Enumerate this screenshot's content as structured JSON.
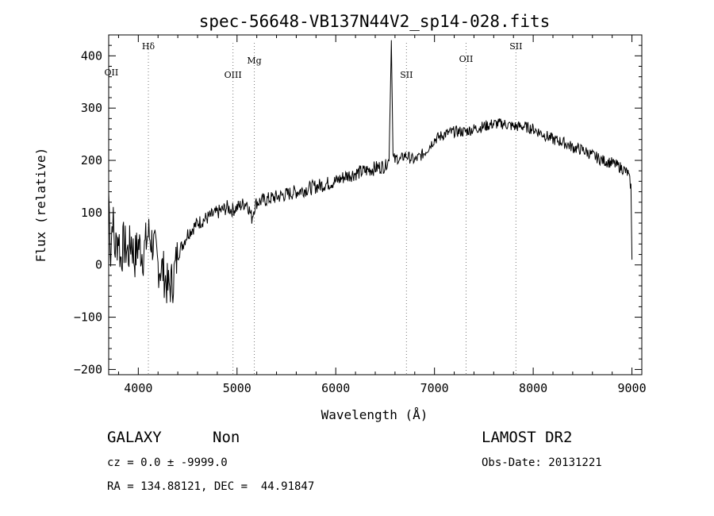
{
  "chart_data": {
    "type": "line",
    "title": "spec-56648-VB137N44V2_sp14-028.fits",
    "xlabel": "Wavelength (Å)",
    "ylabel": "Flux (relative)",
    "xlim": [
      3700,
      9100
    ],
    "ylim": [
      -210,
      440
    ],
    "xticks": [
      4000,
      5000,
      6000,
      7000,
      8000,
      9000
    ],
    "yticks": [
      -200,
      -100,
      0,
      100,
      200,
      300,
      400
    ],
    "grid": false,
    "series": [
      {
        "x": [
          3700,
          3720,
          3740,
          3760,
          3780,
          3800,
          3820,
          3850,
          3880,
          3900,
          3930,
          3960,
          4000,
          4050,
          4100,
          4150,
          4200,
          4250,
          4300,
          4350,
          4400,
          4450,
          4500,
          4600,
          4700,
          4800,
          4850,
          4900,
          4950,
          5000,
          5050,
          5100,
          5150,
          5175,
          5200,
          5300,
          5400,
          5500,
          5600,
          5700,
          5800,
          5900,
          6000,
          6100,
          6200,
          6300,
          6400,
          6500,
          6540,
          6563,
          6580,
          6600,
          6620,
          6650,
          6700,
          6750,
          6800,
          6900,
          7000,
          7100,
          7200,
          7300,
          7400,
          7500,
          7600,
          7700,
          7800,
          7900,
          8000,
          8100,
          8200,
          8300,
          8400,
          8500,
          8600,
          8700,
          8800,
          8900,
          8960,
          8990,
          9000
        ],
        "y": [
          140,
          20,
          100,
          30,
          40,
          60,
          10,
          40,
          30,
          20,
          50,
          10,
          40,
          20,
          60,
          40,
          0,
          -10,
          -45,
          -30,
          20,
          40,
          60,
          80,
          90,
          100,
          105,
          110,
          105,
          110,
          115,
          120,
          90,
          110,
          120,
          125,
          130,
          135,
          140,
          145,
          150,
          155,
          160,
          170,
          175,
          180,
          185,
          190,
          200,
          430,
          210,
          200,
          205,
          200,
          210,
          205,
          200,
          215,
          240,
          250,
          255,
          255,
          260,
          265,
          270,
          270,
          265,
          265,
          260,
          250,
          240,
          235,
          225,
          220,
          210,
          200,
          195,
          185,
          175,
          150,
          10
        ]
      }
    ],
    "lines": [
      {
        "label": "OII",
        "wavelength": 3727,
        "dotted": false
      },
      {
        "label": "Hδ",
        "wavelength": 4102,
        "dotted": true
      },
      {
        "label": "OIII",
        "wavelength": 4959,
        "dotted": true
      },
      {
        "label": "Mg",
        "wavelength": 5175,
        "dotted": true
      },
      {
        "label": "SII",
        "wavelength": 6716,
        "dotted": true
      },
      {
        "label": "OII",
        "wavelength": 7320,
        "dotted": true
      },
      {
        "label": "SII",
        "wavelength": 7825,
        "dotted": true
      }
    ]
  },
  "info": {
    "class": "GALAXY",
    "subclass": "Non",
    "survey": "LAMOST DR2",
    "cz": "cz = 0.0 ± -9999.0",
    "obs_date": "Obs-Date: 20131221",
    "radec": "RA = 134.88121, DEC =  44.91847"
  }
}
